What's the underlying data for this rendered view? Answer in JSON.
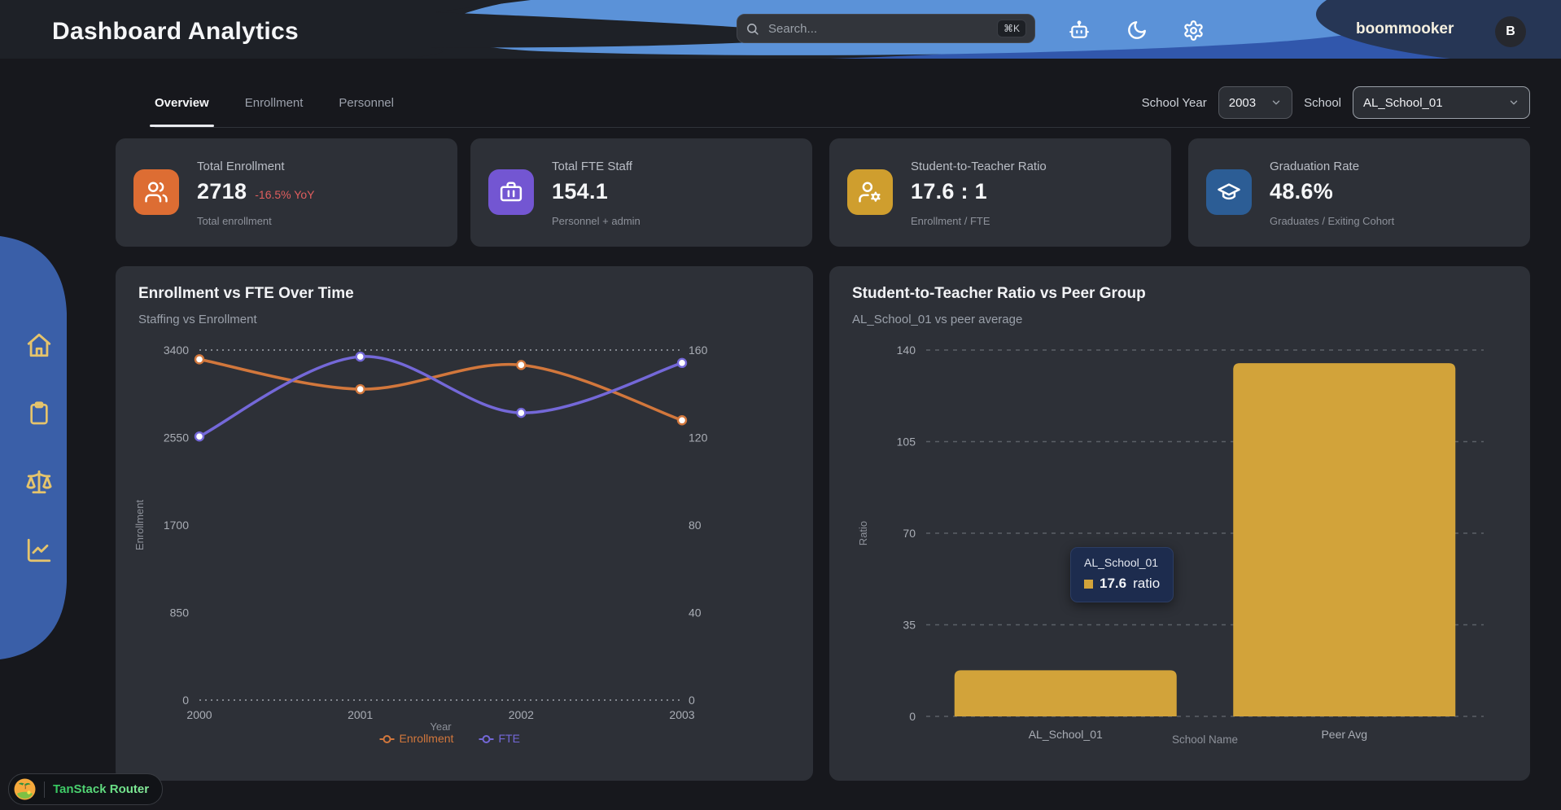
{
  "header": {
    "title": "Dashboard Analytics",
    "search": {
      "placeholder": "Search...",
      "shortcut": "⌘K"
    },
    "user": {
      "name": "boommooker",
      "avatar_initial": "B"
    }
  },
  "tabs": [
    {
      "label": "Overview",
      "active": true
    },
    {
      "label": "Enrollment",
      "active": false
    },
    {
      "label": "Personnel",
      "active": false
    }
  ],
  "filters": {
    "school_year": {
      "label": "School Year",
      "value": "2003"
    },
    "school": {
      "label": "School",
      "value": "AL_School_01"
    }
  },
  "kpis": [
    {
      "title": "Total Enrollment",
      "value": "2718",
      "delta": "-16.5% YoY",
      "subtitle": "Total enrollment",
      "icon": "users-icon",
      "accent": "#dd6d33"
    },
    {
      "title": "Total FTE Staff",
      "value": "154.1",
      "subtitle": "Personnel + admin",
      "icon": "briefcase-icon",
      "accent": "#7356d2"
    },
    {
      "title": "Student-to-Teacher Ratio",
      "value": "17.6 : 1",
      "subtitle": "Enrollment / FTE",
      "icon": "user-cog-icon",
      "accent": "#cf9e2e"
    },
    {
      "title": "Graduation Rate",
      "value": "48.6%",
      "subtitle": "Graduates / Exiting Cohort",
      "icon": "graduation-cap-icon",
      "accent": "#2c5d95"
    }
  ],
  "chart_data": [
    {
      "type": "line",
      "title": "Enrollment vs FTE Over Time",
      "subtitle": "Staffing vs Enrollment",
      "x": [
        2000,
        2001,
        2002,
        2003
      ],
      "xlabel": "Year",
      "series": [
        {
          "name": "Enrollment",
          "axis": "left",
          "color": "#d2773c",
          "values": [
            3310,
            3020,
            3255,
            2718
          ]
        },
        {
          "name": "FTE",
          "axis": "right",
          "color": "#7468d8",
          "values": [
            120.5,
            157,
            131.3,
            154.1
          ]
        }
      ],
      "left_axis": {
        "label": "Enrollment",
        "ticks": [
          0,
          850,
          1700,
          2550,
          3400
        ],
        "max": 3400
      },
      "right_axis": {
        "ticks": [
          0,
          40,
          80,
          120,
          160
        ],
        "max": 160
      },
      "legend_position": "bottom",
      "grid": "dotted top and bottom only"
    },
    {
      "type": "bar",
      "title": "Student-to-Teacher Ratio vs Peer Group",
      "subtitle": "AL_School_01 vs peer average",
      "categories": [
        "AL_School_01",
        "Peer Avg"
      ],
      "values": [
        17.6,
        135
      ],
      "xlabel": "School Name",
      "ylabel": "Ratio",
      "yticks": [
        0,
        35,
        70,
        105,
        140
      ],
      "ylim": [
        0,
        140
      ],
      "bar_color": "#d2a33a",
      "grid": "dashed horizontal",
      "tooltip": {
        "title": "AL_School_01",
        "value": "17.6",
        "unit": "ratio"
      }
    }
  ],
  "sidebar": {
    "items": [
      {
        "name": "home",
        "icon": "home-icon"
      },
      {
        "name": "reports",
        "icon": "clipboard-icon"
      },
      {
        "name": "compare",
        "icon": "scale-icon"
      },
      {
        "name": "analytics",
        "icon": "chart-line-icon"
      }
    ]
  },
  "badge": {
    "label": "TanStack Router"
  },
  "colors": {
    "page_bg": "#17181d",
    "card_bg": "#2d3037",
    "header_bg": "#1e2127",
    "swoosh_light_blue": "#5b92d8",
    "swoosh_royal_blue": "#3157ac",
    "swoosh_navy": "#263655",
    "sidebar_blue": "#3a5fa8",
    "sidebar_icon_gold": "#e5c46c",
    "delta_red": "#e05e5e",
    "bar_gold": "#d2a33a",
    "tooltip_bg": "#1d2c4e"
  }
}
